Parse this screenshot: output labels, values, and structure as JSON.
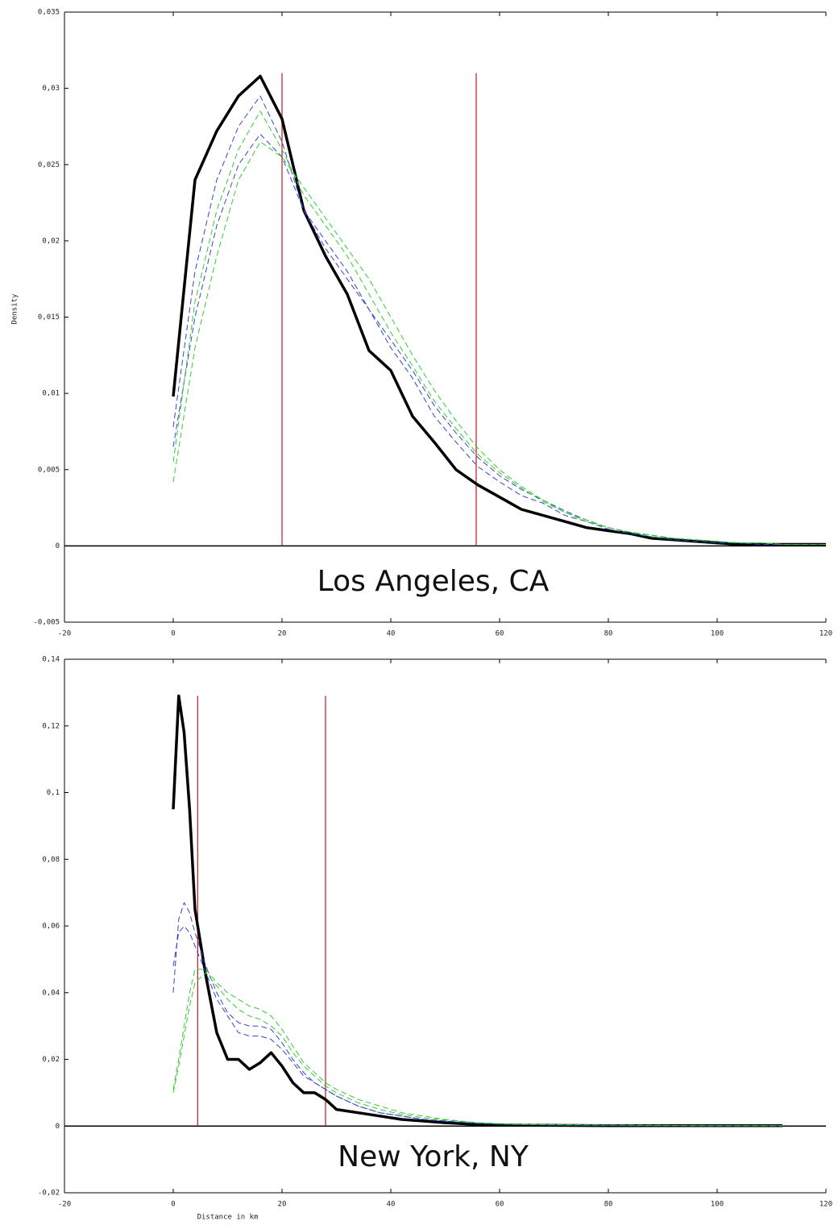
{
  "chart_data": [
    {
      "type": "line",
      "annotation": "Los Angeles, CA",
      "ylabel": "Density",
      "xlim": [
        -20,
        120
      ],
      "xticks": [
        -20,
        0,
        20,
        40,
        60,
        80,
        100,
        120
      ],
      "ylim": [
        -0.005,
        0.035
      ],
      "yticks": [
        {
          "value": -0.005,
          "label": "-0,005"
        },
        0,
        {
          "value": 0.005,
          "label": "0,005"
        },
        {
          "value": 0.01,
          "label": "0,01"
        },
        {
          "value": 0.015,
          "label": "0,015"
        },
        {
          "value": 0.02,
          "label": "0,02"
        },
        {
          "value": 0.025,
          "label": "0,025"
        },
        {
          "value": 0.03,
          "label": "0,03"
        },
        {
          "value": 0.035,
          "label": "0,035"
        }
      ],
      "zero_line": true,
      "vlines": [
        {
          "x": 20,
          "ymax": 0.031
        },
        {
          "x": 55.7,
          "ymax": 0.031
        }
      ],
      "vline_color": "#c0282d",
      "x": [
        0,
        4,
        8,
        12,
        16,
        20,
        24,
        28,
        32,
        36,
        40,
        44,
        48,
        52,
        56,
        60,
        64,
        68,
        72,
        76,
        80,
        84,
        88,
        92,
        96,
        100,
        104,
        108,
        112,
        116,
        120
      ],
      "series": [
        {
          "color": "#000000",
          "dashed": false,
          "values": [
            0.0098,
            0.024,
            0.0272,
            0.0295,
            0.0308,
            0.028,
            0.022,
            0.019,
            0.0165,
            0.0128,
            0.0115,
            0.0085,
            0.0068,
            0.005,
            0.004,
            0.0032,
            0.0024,
            0.002,
            0.0016,
            0.0012,
            0.001,
            0.0008,
            0.0005,
            0.0004,
            0.0003,
            0.0002,
            0.0001,
            0.0001,
            0.0001,
            0.0001,
            0.0001
          ]
        },
        {
          "color": "#3344cc",
          "dashed": true,
          "values": [
            0.0078,
            0.018,
            0.024,
            0.0275,
            0.0295,
            0.0265,
            0.022,
            0.02,
            0.018,
            0.0155,
            0.013,
            0.011,
            0.0085,
            0.0068,
            0.0052,
            0.0042,
            0.0033,
            0.0028,
            0.002,
            0.0016,
            0.0011,
            0.0008,
            0.0006,
            0.0004,
            0.0003,
            0.0002,
            0.0002,
            0.0001,
            0.0001,
            0.0001,
            0.0001
          ]
        },
        {
          "color": "#3344cc",
          "dashed": true,
          "values": [
            0.0065,
            0.015,
            0.021,
            0.025,
            0.027,
            0.0255,
            0.022,
            0.0195,
            0.0175,
            0.0155,
            0.0135,
            0.0115,
            0.0092,
            0.0074,
            0.0058,
            0.0046,
            0.0037,
            0.003,
            0.0023,
            0.0017,
            0.0012,
            0.0009,
            0.0007,
            0.0005,
            0.0004,
            0.0003,
            0.0002,
            0.0002,
            0.0001,
            0.0001,
            0.0001
          ]
        },
        {
          "color": "#33cc33",
          "dashed": true,
          "values": [
            0.0055,
            0.016,
            0.022,
            0.026,
            0.0285,
            0.026,
            0.023,
            0.021,
            0.019,
            0.0165,
            0.014,
            0.0118,
            0.0095,
            0.0077,
            0.006,
            0.0048,
            0.0038,
            0.0029,
            0.0022,
            0.0016,
            0.0012,
            0.0009,
            0.0006,
            0.0005,
            0.0004,
            0.0003,
            0.0002,
            0.0002,
            0.0001,
            0.0001,
            0.0001
          ]
        },
        {
          "color": "#33cc33",
          "dashed": true,
          "values": [
            0.0042,
            0.013,
            0.019,
            0.024,
            0.0265,
            0.0255,
            0.0235,
            0.0215,
            0.0195,
            0.0175,
            0.015,
            0.0125,
            0.0102,
            0.0082,
            0.0064,
            0.005,
            0.0039,
            0.003,
            0.0022,
            0.0017,
            0.0012,
            0.0009,
            0.0007,
            0.0005,
            0.0004,
            0.0003,
            0.0002,
            0.0002,
            0.0001,
            0.0001,
            0.0001
          ]
        }
      ]
    },
    {
      "type": "line",
      "annotation": "New York, NY",
      "xlabel": "Distance in km",
      "xlim": [
        -20,
        120
      ],
      "xticks": [
        -20,
        0,
        20,
        40,
        60,
        80,
        100,
        120
      ],
      "ylim": [
        -0.02,
        0.14
      ],
      "yticks": [
        {
          "value": -0.02,
          "label": "-0,02"
        },
        0,
        {
          "value": 0.02,
          "label": "0,02"
        },
        {
          "value": 0.04,
          "label": "0,04"
        },
        {
          "value": 0.06,
          "label": "0,06"
        },
        {
          "value": 0.08,
          "label": "0,08"
        },
        {
          "value": 0.1,
          "label": "0,1"
        },
        {
          "value": 0.12,
          "label": "0,12"
        },
        {
          "value": 0.14,
          "label": "0,14"
        }
      ],
      "zero_line": true,
      "vlines": [
        {
          "x": 4.5,
          "ymax": 0.129
        },
        {
          "x": 28,
          "ymax": 0.129
        }
      ],
      "vline_color": "#c0282d",
      "x": [
        0,
        1,
        2,
        3,
        4,
        6,
        8,
        10,
        12,
        14,
        16,
        18,
        20,
        22,
        24,
        26,
        28,
        30,
        34,
        38,
        42,
        46,
        50,
        56,
        62,
        70,
        80,
        90,
        100,
        112
      ],
      "series": [
        {
          "color": "#000000",
          "dashed": false,
          "values": [
            0.095,
            0.129,
            0.118,
            0.095,
            0.065,
            0.045,
            0.028,
            0.02,
            0.02,
            0.017,
            0.019,
            0.022,
            0.018,
            0.013,
            0.01,
            0.01,
            0.008,
            0.005,
            0.004,
            0.003,
            0.002,
            0.0015,
            0.001,
            0.0005,
            0.0003,
            0.0002,
            0.0001,
            0.0001,
            0.0001,
            0.0001
          ]
        },
        {
          "color": "#3344cc",
          "dashed": true,
          "values": [
            0.04,
            0.062,
            0.067,
            0.064,
            0.058,
            0.048,
            0.04,
            0.034,
            0.031,
            0.03,
            0.03,
            0.029,
            0.025,
            0.02,
            0.016,
            0.013,
            0.011,
            0.009,
            0.006,
            0.004,
            0.003,
            0.002,
            0.0015,
            0.0008,
            0.0005,
            0.0003,
            0.0002,
            0.0001,
            0.0001,
            0.0001
          ]
        },
        {
          "color": "#3344cc",
          "dashed": true,
          "values": [
            0.048,
            0.058,
            0.06,
            0.058,
            0.054,
            0.046,
            0.038,
            0.033,
            0.028,
            0.027,
            0.027,
            0.026,
            0.023,
            0.019,
            0.015,
            0.013,
            0.011,
            0.009,
            0.006,
            0.004,
            0.003,
            0.002,
            0.0015,
            0.0008,
            0.0005,
            0.0003,
            0.0002,
            0.0001,
            0.0001,
            0.0001
          ]
        },
        {
          "color": "#33cc33",
          "dashed": true,
          "values": [
            0.011,
            0.02,
            0.03,
            0.04,
            0.047,
            0.047,
            0.043,
            0.04,
            0.038,
            0.036,
            0.035,
            0.033,
            0.029,
            0.024,
            0.019,
            0.016,
            0.013,
            0.011,
            0.008,
            0.006,
            0.004,
            0.003,
            0.002,
            0.001,
            0.0006,
            0.0004,
            0.0003,
            0.0002,
            0.0001,
            0.0001
          ]
        },
        {
          "color": "#33cc33",
          "dashed": true,
          "values": [
            0.01,
            0.018,
            0.027,
            0.036,
            0.043,
            0.046,
            0.042,
            0.038,
            0.035,
            0.033,
            0.032,
            0.03,
            0.027,
            0.022,
            0.018,
            0.015,
            0.012,
            0.01,
            0.007,
            0.005,
            0.0035,
            0.0025,
            0.0018,
            0.001,
            0.0006,
            0.0004,
            0.0003,
            0.0002,
            0.0001,
            0.0001
          ]
        }
      ]
    }
  ]
}
